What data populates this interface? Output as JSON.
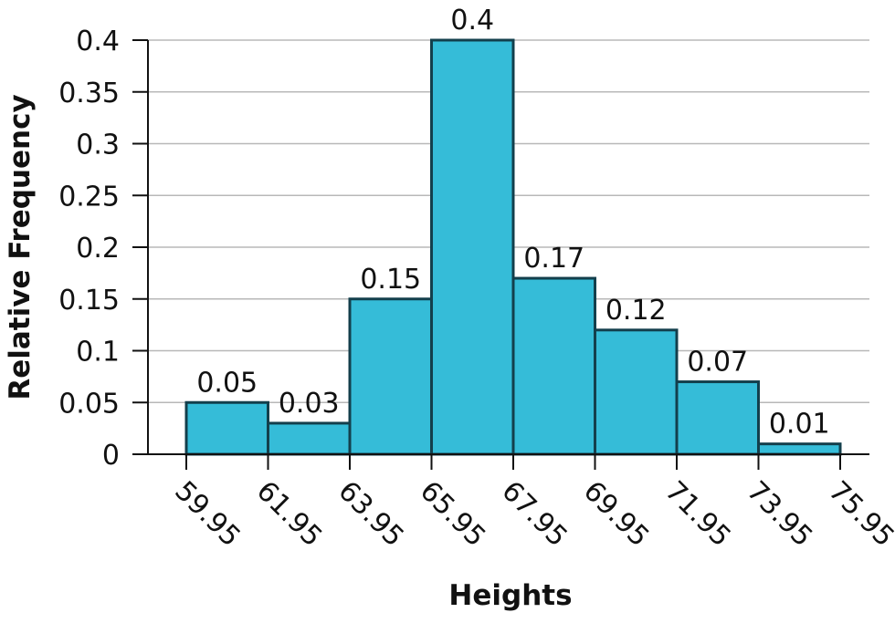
{
  "chart_data": {
    "type": "bar",
    "title": "",
    "xlabel": "Heights",
    "ylabel": "Relative Frequency",
    "bin_edges": [
      "59.95",
      "61.95",
      "63.95",
      "65.95",
      "67.95",
      "69.95",
      "71.95",
      "73.95",
      "75.95"
    ],
    "values": [
      0.05,
      0.03,
      0.15,
      0.4,
      0.17,
      0.12,
      0.07,
      0.01
    ],
    "value_labels": [
      "0.05",
      "0.03",
      "0.15",
      "0.4",
      "0.17",
      "0.12",
      "0.07",
      "0.01"
    ],
    "ylim": [
      0,
      0.4
    ],
    "yticks": [
      "0",
      "0.05",
      "0.1",
      "0.15",
      "0.2",
      "0.25",
      "0.3",
      "0.35",
      "0.4"
    ],
    "grid": "horizontal",
    "colors": {
      "bar_fill": "#35bcd8",
      "bar_stroke": "#133f4c",
      "grid": "#b8b8b8",
      "axis": "#111111"
    }
  }
}
